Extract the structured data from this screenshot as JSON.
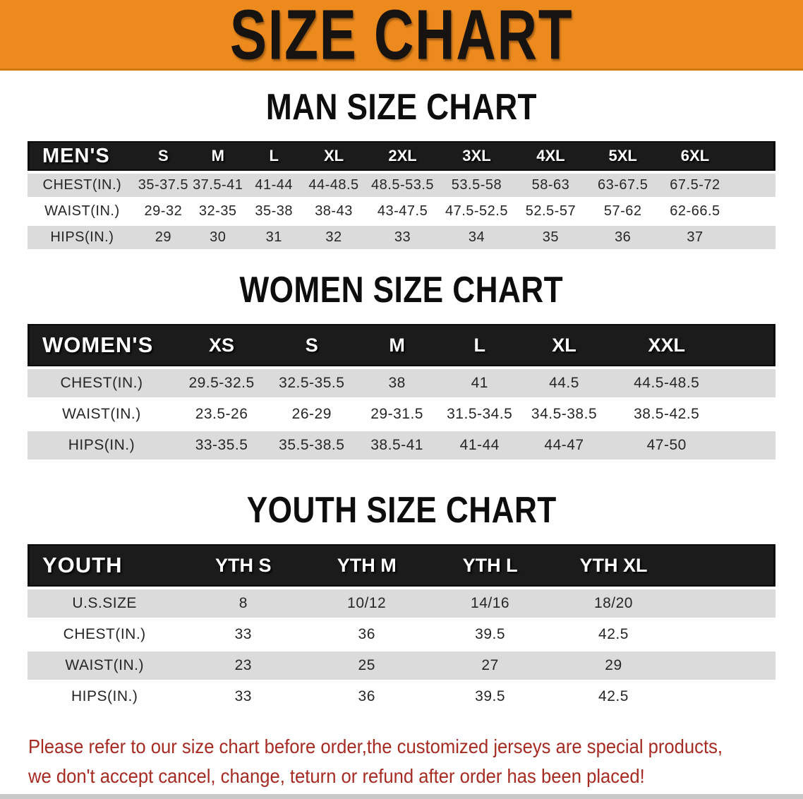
{
  "banner": {
    "title": "SIZE CHART"
  },
  "sections": {
    "men": {
      "title": "MAN SIZE CHART"
    },
    "women": {
      "title": "WOMEN SIZE CHART"
    },
    "youth": {
      "title": "YOUTH SIZE CHART"
    }
  },
  "tables": {
    "men": {
      "label": "MEN'S",
      "sizes": [
        "S",
        "M",
        "L",
        "XL",
        "2XL",
        "3XL",
        "4XL",
        "5XL",
        "6XL"
      ],
      "rows": [
        {
          "label": "CHEST(IN.)",
          "values": [
            "35-37.5",
            "37.5-41",
            "41-44",
            "44-48.5",
            "48.5-53.5",
            "53.5-58",
            "58-63",
            "63-67.5",
            "67.5-72"
          ]
        },
        {
          "label": "WAIST(IN.)",
          "values": [
            "29-32",
            "32-35",
            "35-38",
            "38-43",
            "43-47.5",
            "47.5-52.5",
            "52.5-57",
            "57-62",
            "62-66.5"
          ]
        },
        {
          "label": "HIPS(IN.)",
          "values": [
            "29",
            "30",
            "31",
            "32",
            "33",
            "34",
            "35",
            "36",
            "37"
          ]
        }
      ]
    },
    "women": {
      "label": "WOMEN'S",
      "sizes": [
        "XS",
        "S",
        "M",
        "L",
        "XL",
        "XXL"
      ],
      "rows": [
        {
          "label": "CHEST(IN.)",
          "values": [
            "29.5-32.5",
            "32.5-35.5",
            "38",
            "41",
            "44.5",
            "44.5-48.5"
          ]
        },
        {
          "label": "WAIST(IN.)",
          "values": [
            "23.5-26",
            "26-29",
            "29-31.5",
            "31.5-34.5",
            "34.5-38.5",
            "38.5-42.5"
          ]
        },
        {
          "label": "HIPS(IN.)",
          "values": [
            "33-35.5",
            "35.5-38.5",
            "38.5-41",
            "41-44",
            "44-47",
            "47-50"
          ]
        }
      ]
    },
    "youth": {
      "label": "YOUTH",
      "sizes": [
        "YTH S",
        "YTH M",
        "YTH L",
        "YTH XL"
      ],
      "rows": [
        {
          "label": "U.S.SIZE",
          "values": [
            "8",
            "10/12",
            "14/16",
            "18/20"
          ]
        },
        {
          "label": "CHEST(IN.)",
          "values": [
            "33",
            "36",
            "39.5",
            "42.5"
          ]
        },
        {
          "label": "WAIST(IN.)",
          "values": [
            "23",
            "25",
            "27",
            "29"
          ]
        },
        {
          "label": "HIPS(IN.)",
          "values": [
            "33",
            "36",
            "39.5",
            "42.5"
          ]
        }
      ]
    }
  },
  "note": {
    "line1": "Please refer to our size chart before order,the customized jerseys are special products,",
    "line2": "we don't accept cancel, change, teturn or refund after order has been placed!"
  },
  "colors": {
    "banner_orange": "#EC8A1E",
    "header_black": "#1B1B1B",
    "row_gray": "#DBDBDB",
    "note_red": "#A62B22"
  }
}
